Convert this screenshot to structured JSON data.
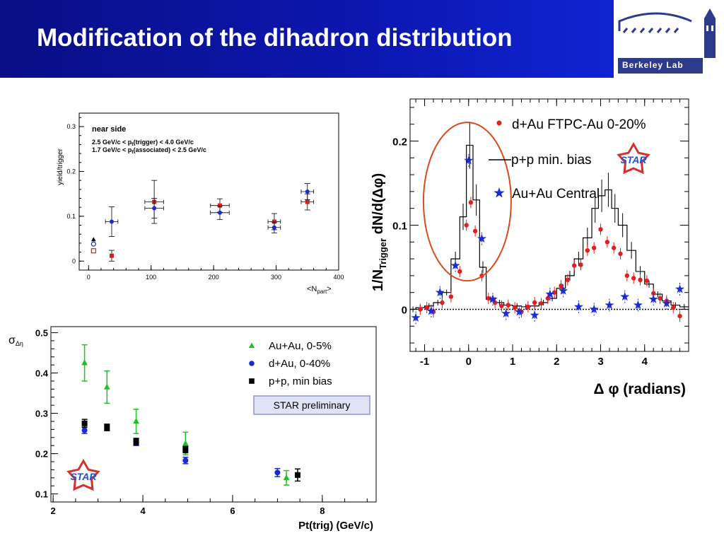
{
  "slide": {
    "title": "Modification of the dihadron distribution",
    "logo_text": "Berkeley Lab"
  },
  "chart_data": [
    {
      "type": "scatter",
      "panel": "near-side-yield",
      "xlabel": "<N",
      "xlabel_sub": "part",
      "xlabel_end": ">",
      "ylabel": "yield/trigger",
      "xlim": [
        -15,
        400
      ],
      "ylim": [
        -0.02,
        0.33
      ],
      "xticks": [
        "0",
        "100",
        "200",
        "300",
        "400"
      ],
      "yticks": [
        "0",
        "0.1",
        "0.2",
        "0.3"
      ],
      "annotations": [
        "near side",
        "2.5 GeV/c < p",
        "(trigger) < 4.0 GeV/c",
        "1.7 GeV/c < p",
        "(associated) < 2.5 GeV/c"
      ],
      "ann_sub": "t",
      "series": [
        {
          "color": "#d42020",
          "marker": "square",
          "points": [
            [
              37,
              0.012,
              0,
              0.012
            ],
            [
              105,
              0.132,
              15,
              0.048
            ],
            [
              210,
              0.124,
              15,
              0.015
            ],
            [
              297,
              0.088,
              10,
              0.018
            ],
            [
              350,
              0.132,
              10,
              0.018
            ]
          ]
        },
        {
          "color": "#1a2ad8",
          "marker": "circle",
          "points": [
            [
              37,
              0.088,
              10,
              0.033
            ],
            [
              105,
              0.118,
              15,
              0.022
            ],
            [
              210,
              0.108,
              15,
              0.015
            ],
            [
              297,
              0.075,
              10,
              0.012
            ],
            [
              350,
              0.155,
              10,
              0.018
            ]
          ]
        },
        {
          "color": "#000000",
          "marker": "triangle",
          "points": [
            [
              8,
              0.048,
              0,
              0
            ]
          ]
        },
        {
          "color": "#1a2ad8",
          "marker": "open-circle",
          "points": [
            [
              8,
              0.038,
              0,
              0
            ]
          ]
        },
        {
          "color": "#d42020",
          "marker": "open-square",
          "points": [
            [
              8,
              0.023,
              0,
              0
            ]
          ]
        }
      ]
    },
    {
      "type": "scatter",
      "panel": "width-vs-pt",
      "xlabel": "Pt(trig) (GeV/c)",
      "ylabel": "σ",
      "ylabel_sub": "Δη",
      "xlim": [
        1.95,
        9.2
      ],
      "ylim": [
        0.08,
        0.515
      ],
      "xticks": [
        "2",
        "4",
        "6",
        "8"
      ],
      "yticks": [
        "0.1",
        "0.2",
        "0.3",
        "0.4",
        "0.5"
      ],
      "label_box": "STAR preliminary",
      "star_logo": "STAR",
      "series": [
        {
          "name": "Au+Au, 0-5%",
          "color": "#22c022",
          "marker": "triangle",
          "points": [
            [
              2.7,
              0.425,
              0.045
            ],
            [
              3.2,
              0.365,
              0.04
            ],
            [
              3.85,
              0.28,
              0.03
            ],
            [
              4.95,
              0.225,
              0.028
            ],
            [
              7.2,
              0.14,
              0.018
            ]
          ]
        },
        {
          "name": "d+Au, 0-40%",
          "color": "#1a2ad8",
          "marker": "circle",
          "points": [
            [
              2.7,
              0.258,
              0.008
            ],
            [
              3.2,
              0.265,
              0.008
            ],
            [
              3.85,
              0.228,
              0.008
            ],
            [
              4.95,
              0.183,
              0.008
            ],
            [
              7.0,
              0.153,
              0.01
            ]
          ]
        },
        {
          "name": "p+p, min bias",
          "color": "#000000",
          "marker": "square",
          "points": [
            [
              2.7,
              0.275,
              0.01
            ],
            [
              3.2,
              0.265,
              0.008
            ],
            [
              3.85,
              0.23,
              0.008
            ],
            [
              4.95,
              0.21,
              0.008
            ],
            [
              7.45,
              0.147,
              0.015
            ]
          ]
        }
      ]
    },
    {
      "type": "line",
      "panel": "dphi-distribution",
      "xlabel": "Δ φ (radians)",
      "ylabel": "1/N",
      "ylabel_sub": "Trigger",
      "ylabel_end": " dN/d(Δφ)",
      "xlim": [
        -1.33,
        5.0
      ],
      "ylim": [
        -0.05,
        0.25
      ],
      "xticks": [
        "-1",
        "0",
        "1",
        "2",
        "3",
        "4"
      ],
      "yticks": [
        "0",
        "0.1",
        "0.2"
      ],
      "star_logo": "STAR",
      "series": [
        {
          "name": "d+Au FTPC-Au 0-20%",
          "color": "#e02020",
          "marker": "circle",
          "x": [
            -1.1,
            -0.95,
            -0.8,
            -0.6,
            -0.4,
            -0.2,
            -0.05,
            0.05,
            0.15,
            0.3,
            0.45,
            0.6,
            0.75,
            0.9,
            1.05,
            1.2,
            1.35,
            1.5,
            1.65,
            1.8,
            1.95,
            2.1,
            2.25,
            2.4,
            2.55,
            2.7,
            2.85,
            3.0,
            3.15,
            3.3,
            3.45,
            3.6,
            3.75,
            3.9,
            4.05,
            4.2,
            4.35,
            4.5,
            4.65,
            4.8
          ],
          "y": [
            0.0,
            0.002,
            -0.003,
            0.008,
            0.015,
            0.045,
            0.1,
            0.127,
            0.093,
            0.04,
            0.013,
            0.008,
            0.004,
            0.005,
            0.002,
            -0.003,
            0.003,
            0.008,
            0.007,
            0.013,
            0.02,
            0.028,
            0.035,
            0.052,
            0.053,
            0.07,
            0.073,
            0.095,
            0.08,
            0.073,
            0.066,
            0.04,
            0.037,
            0.035,
            0.034,
            0.019,
            0.013,
            0.01,
            0.002,
            -0.008
          ]
        },
        {
          "name": "Au+Au Central",
          "color": "#1a2ad8",
          "marker": "star",
          "x": [
            -1.2,
            -0.85,
            -0.65,
            -0.3,
            0.0,
            0.3,
            0.55,
            0.85,
            1.15,
            1.5,
            1.85,
            2.15,
            2.5,
            2.85,
            3.2,
            3.55,
            3.85,
            4.2,
            4.5,
            4.8
          ],
          "y": [
            -0.01,
            -0.002,
            0.02,
            0.052,
            0.177,
            0.084,
            0.012,
            -0.005,
            -0.003,
            -0.007,
            0.018,
            0.022,
            0.003,
            0.0,
            0.005,
            0.015,
            0.005,
            0.012,
            0.007,
            0.024
          ]
        },
        {
          "name": "p+p min. bias",
          "color": "#000000",
          "marker": "step",
          "edges": [
            -1.33,
            -1.2,
            -1.0,
            -0.8,
            -0.6,
            -0.4,
            -0.2,
            -0.05,
            0.1,
            0.25,
            0.4,
            0.6,
            0.8,
            1.0,
            1.2,
            1.4,
            1.6,
            1.8,
            2.0,
            2.2,
            2.4,
            2.6,
            2.8,
            2.95,
            3.1,
            3.25,
            3.4,
            3.6,
            3.8,
            4.0,
            4.2,
            4.4,
            4.6,
            4.8,
            5.0
          ],
          "y": [
            0.0,
            0.002,
            0.004,
            0.008,
            0.02,
            0.06,
            0.11,
            0.195,
            0.13,
            0.05,
            0.012,
            0.008,
            0.005,
            0.004,
            0.003,
            0.004,
            0.008,
            0.013,
            0.025,
            0.04,
            0.06,
            0.085,
            0.12,
            0.135,
            0.142,
            0.12,
            0.1,
            0.07,
            0.045,
            0.03,
            0.018,
            0.01,
            0.005,
            0.003
          ]
        }
      ]
    }
  ]
}
